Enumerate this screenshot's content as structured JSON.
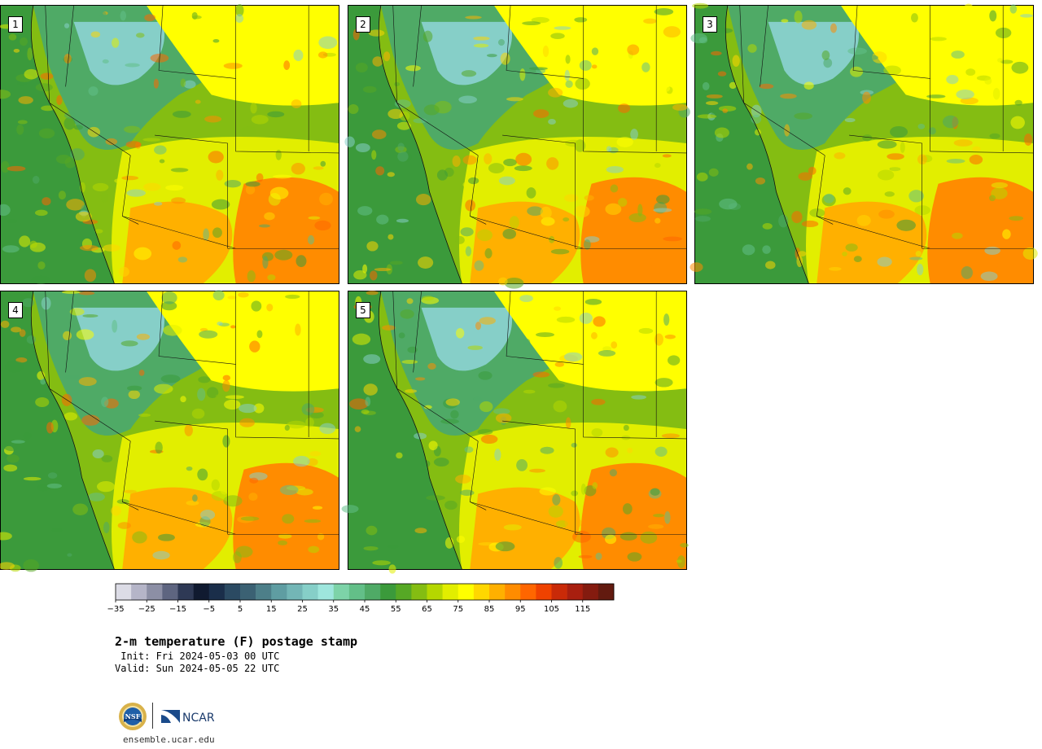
{
  "panels": [
    {
      "label": "1"
    },
    {
      "label": "2"
    },
    {
      "label": "3"
    },
    {
      "label": "4"
    },
    {
      "label": "5"
    }
  ],
  "colorbar": {
    "tick_labels": [
      "−35",
      "−25",
      "−15",
      "−5",
      "5",
      "15",
      "25",
      "35",
      "45",
      "55",
      "65",
      "75",
      "85",
      "95",
      "105",
      "115"
    ],
    "colors": [
      "#dcdce6",
      "#b5b5c8",
      "#8c8fa5",
      "#5e6580",
      "#2e3955",
      "#101a30",
      "#1a2e4a",
      "#2b4a62",
      "#3b6173",
      "#4d7f89",
      "#5f9da2",
      "#73b6b6",
      "#86cfc8",
      "#9ee6dd",
      "#7dd3a8",
      "#63bf88",
      "#4faa66",
      "#3b9a3b",
      "#56a825",
      "#84bd12",
      "#b5d700",
      "#e2ee00",
      "#ffff00",
      "#ffd700",
      "#ffb000",
      "#ff8c00",
      "#ff6600",
      "#ef4200",
      "#c92a08",
      "#a81f0f",
      "#841b0f",
      "#621a0f"
    ]
  },
  "title": {
    "main": "2-m temperature (F) postage stamp",
    "init": " Init: Fri 2024-05-03 00 UTC",
    "valid": "Valid: Sun 2024-05-05 22 UTC"
  },
  "logos": {
    "nsf": "NSF",
    "ncar": "NCAR"
  },
  "footer": {
    "url": "ensemble.ucar.edu"
  }
}
